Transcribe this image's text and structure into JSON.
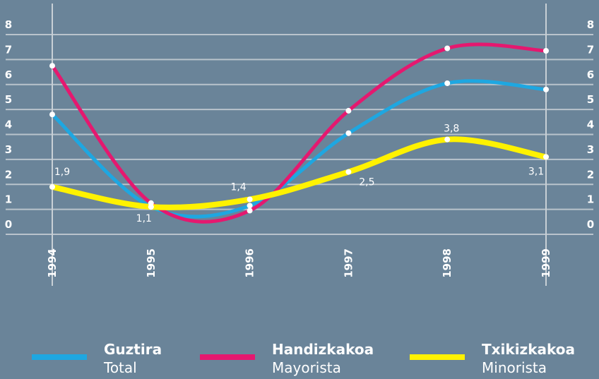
{
  "chart_data": {
    "type": "line",
    "categories": [
      "1994",
      "1995",
      "1996",
      "1997",
      "1998",
      "1999"
    ],
    "series": [
      {
        "name": "Guztira",
        "translation": "Total",
        "color": "#1ea7e1",
        "values": [
          4.8,
          1.1,
          1.15,
          4.05,
          6.05,
          5.8
        ]
      },
      {
        "name": "Handizkakoa",
        "translation": "Mayorista",
        "color": "#e5186f",
        "values": [
          6.75,
          1.25,
          0.95,
          4.95,
          7.45,
          7.35
        ]
      },
      {
        "name": "Txikizkakoa",
        "translation": "Minorista",
        "color": "#fff200",
        "values": [
          1.9,
          1.1,
          1.4,
          2.5,
          3.8,
          3.1
        ],
        "value_labels": [
          "1,9",
          "1,1",
          "1,4",
          "2,5",
          "3,8",
          "3,1"
        ]
      }
    ],
    "ylim": [
      0,
      8
    ],
    "yticks": [
      0,
      1,
      2,
      3,
      4,
      5,
      6,
      7,
      8
    ],
    "grid": true
  }
}
